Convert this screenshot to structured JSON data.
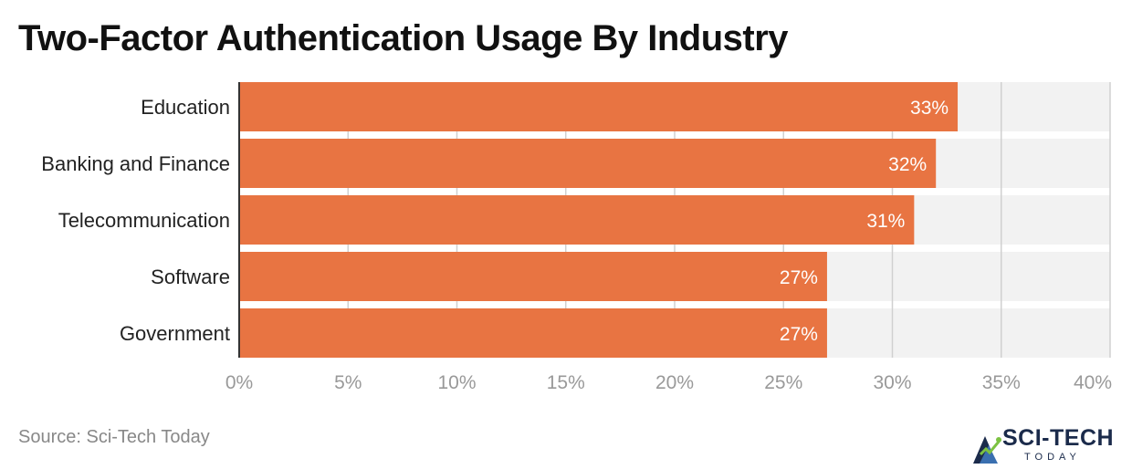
{
  "chart_data": {
    "type": "bar",
    "orientation": "horizontal",
    "title": "Two-Factor Authentication Usage By Industry",
    "categories": [
      "Education",
      "Banking and Finance",
      "Telecommunication",
      "Software",
      "Government"
    ],
    "values": [
      33,
      32,
      31,
      27,
      27
    ],
    "value_labels": [
      "33%",
      "32%",
      "31%",
      "27%",
      "27%"
    ],
    "xlim": [
      0,
      40
    ],
    "x_ticks": [
      0,
      5,
      10,
      15,
      20,
      25,
      30,
      35,
      40
    ],
    "x_tick_labels": [
      "0%",
      "5%",
      "10%",
      "15%",
      "20%",
      "25%",
      "30%",
      "35%",
      "40%"
    ],
    "grid": true,
    "bar_color": "#e87442",
    "track_color": "#f2f2f2"
  },
  "source": "Source: Sci-Tech Today",
  "logo": {
    "text": "SCI-TECH",
    "subtext": "TODAY"
  }
}
